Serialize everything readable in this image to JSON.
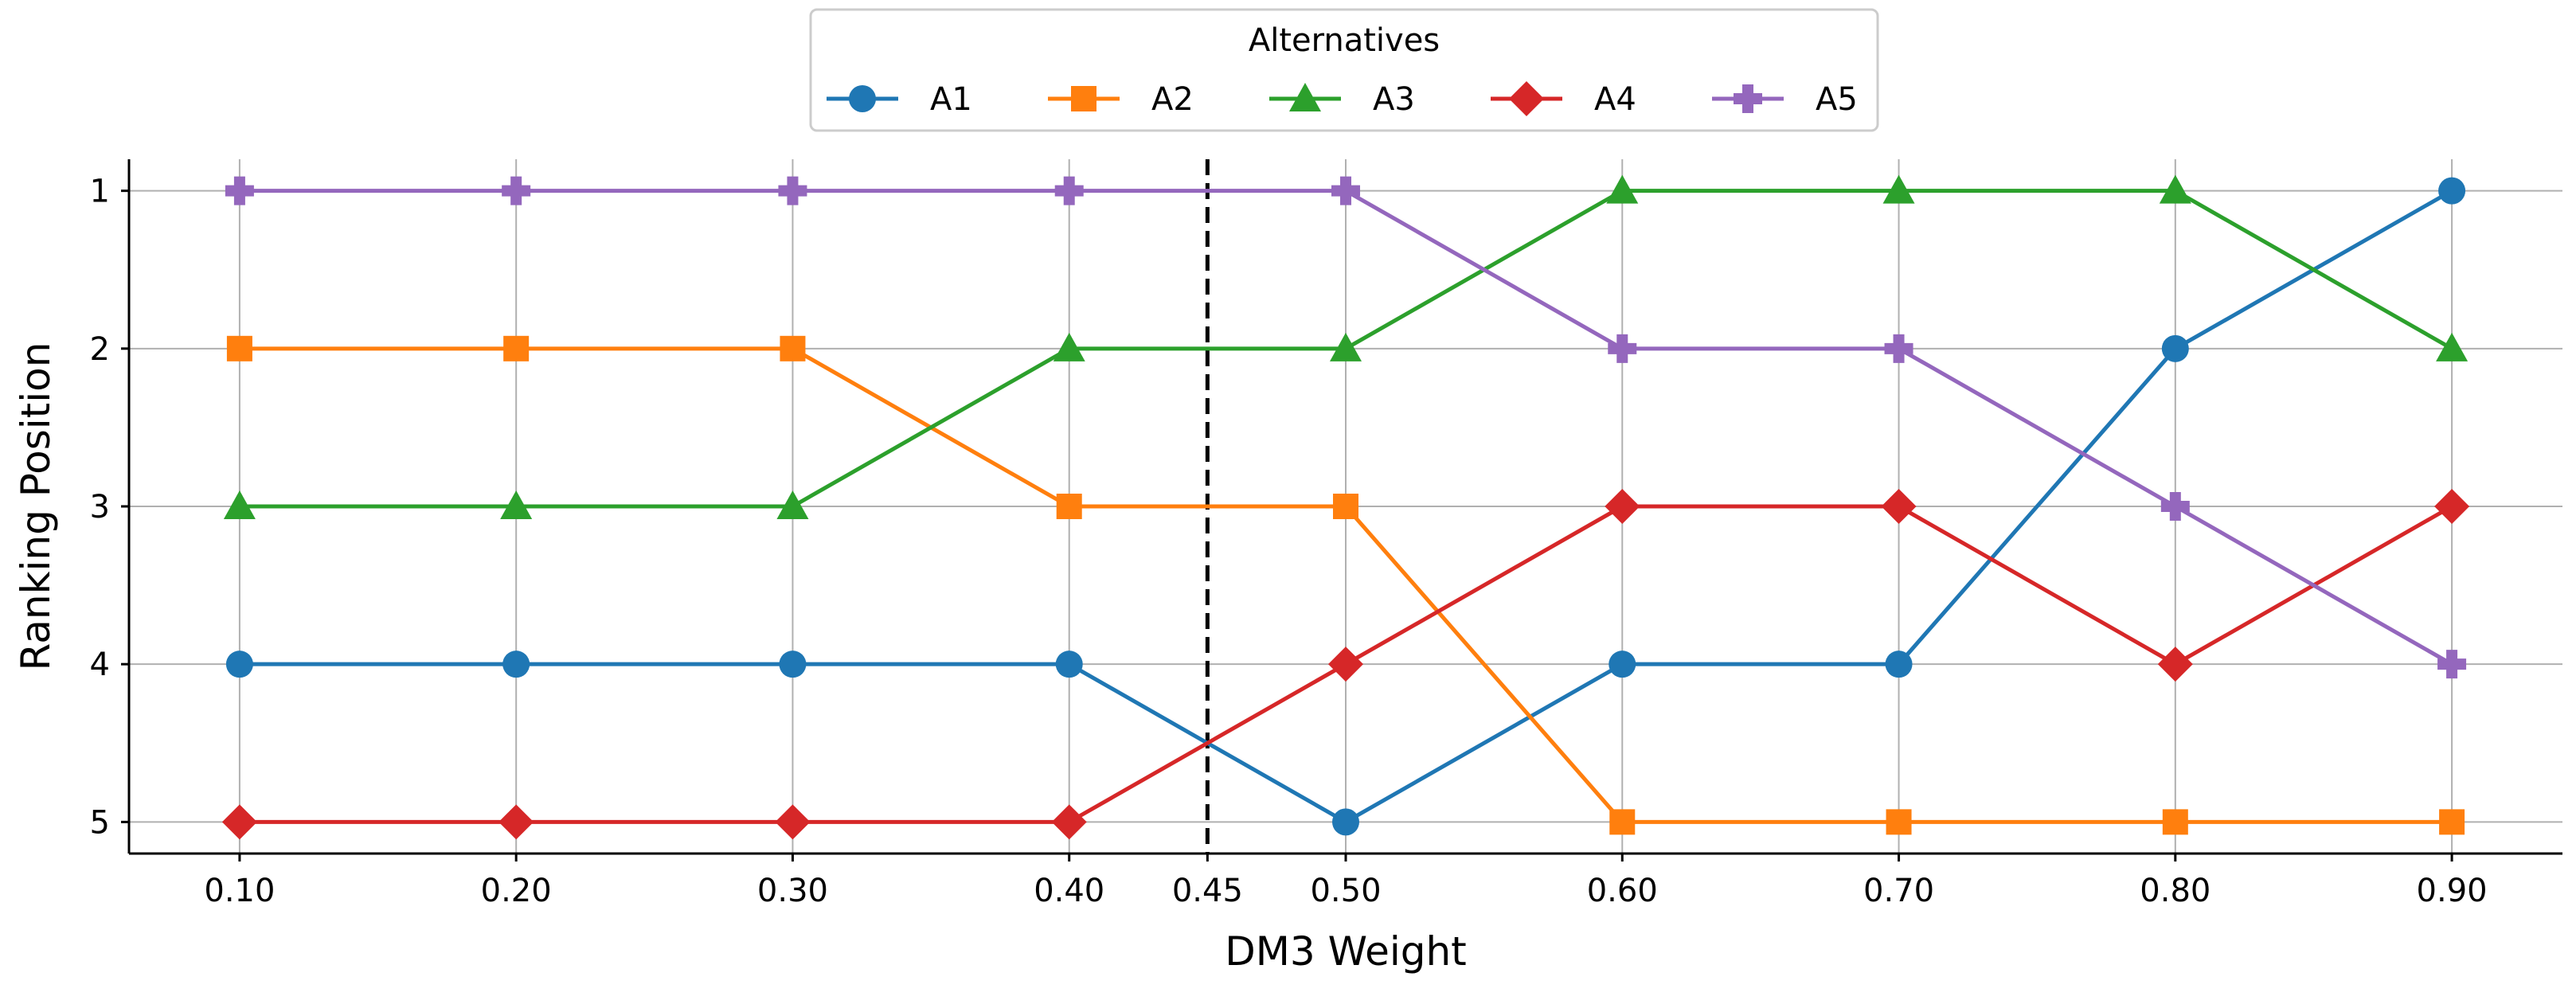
{
  "chart_data": {
    "type": "line",
    "x": [
      0.1,
      0.2,
      0.3,
      0.4,
      0.5,
      0.6,
      0.7,
      0.8,
      0.9
    ],
    "x_tick_labels": [
      "0.10",
      "0.20",
      "0.30",
      "0.40",
      "0.45",
      "0.50",
      "0.60",
      "0.70",
      "0.80",
      "0.90"
    ],
    "x_ticks": [
      0.1,
      0.2,
      0.3,
      0.4,
      0.45,
      0.5,
      0.6,
      0.7,
      0.8,
      0.9
    ],
    "y_ticks": [
      1,
      2,
      3,
      4,
      5
    ],
    "y_tick_labels": [
      "1",
      "2",
      "3",
      "4",
      "5"
    ],
    "y_inverted": true,
    "xlabel": "DM3 Weight",
    "ylabel": "Ranking Position",
    "xlim": [
      0.06,
      0.94
    ],
    "ylim": [
      5.2,
      0.8
    ],
    "grid": true,
    "reference_line_x": 0.45,
    "legend": {
      "title": "Alternatives",
      "placement": "top-center"
    },
    "series": [
      {
        "name": "A1",
        "color": "#1f77b4",
        "marker": "circle",
        "values": [
          4,
          4,
          4,
          4,
          5,
          4,
          4,
          2,
          1
        ]
      },
      {
        "name": "A2",
        "color": "#ff7f0e",
        "marker": "square",
        "values": [
          2,
          2,
          2,
          3,
          3,
          5,
          5,
          5,
          5
        ]
      },
      {
        "name": "A3",
        "color": "#2ca02c",
        "marker": "triangle",
        "values": [
          3,
          3,
          3,
          2,
          2,
          1,
          1,
          1,
          2
        ]
      },
      {
        "name": "A4",
        "color": "#d62728",
        "marker": "diamond",
        "values": [
          5,
          5,
          5,
          5,
          4,
          3,
          3,
          4,
          3
        ]
      },
      {
        "name": "A5",
        "color": "#9467bd",
        "marker": "plus",
        "values": [
          1,
          1,
          1,
          1,
          1,
          2,
          2,
          3,
          4
        ]
      }
    ]
  }
}
